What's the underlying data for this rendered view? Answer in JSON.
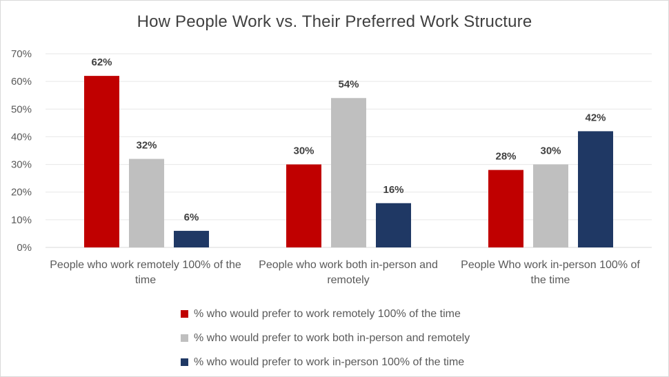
{
  "chart_data": {
    "type": "bar",
    "title": "How People Work vs. Their Preferred Work Structure",
    "categories": [
      "People who work remotely 100% of the time",
      "People who work both in-person and remotely",
      "People Who work in-person 100% of the time"
    ],
    "series": [
      {
        "name": "% who would prefer to work remotely 100% of the time",
        "color": "#c00000",
        "values": [
          62,
          30,
          28
        ]
      },
      {
        "name": "% who would prefer to work both in-person and remotely",
        "color": "#bfbfbf",
        "values": [
          32,
          54,
          30
        ]
      },
      {
        "name": "% who would prefer to work in-person 100% of the time",
        "color": "#1f3864",
        "values": [
          6,
          16,
          42
        ]
      }
    ],
    "yticks": [
      "0%",
      "10%",
      "20%",
      "30%",
      "40%",
      "50%",
      "60%",
      "70%"
    ],
    "ylim": [
      0,
      70
    ],
    "grid": true,
    "legend_position": "bottom",
    "value_suffix": "%"
  }
}
